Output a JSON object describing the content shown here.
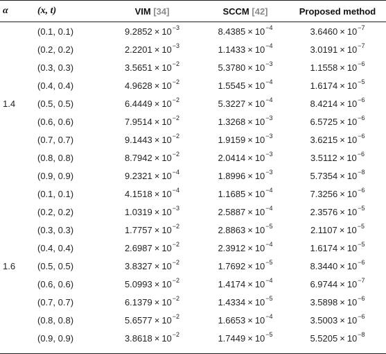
{
  "header": {
    "alpha": "α",
    "xt": "(x, t)",
    "vim_label": "VIM",
    "vim_ref": "[34]",
    "sccm_label": "SCCM",
    "sccm_ref": "[42]",
    "proposed_label": "Proposed method"
  },
  "times_symbol": "×",
  "rows": [
    {
      "alpha": "",
      "xt": "(0.1, 0.1)",
      "vim": {
        "m": "9.2852",
        "e": "−3"
      },
      "sccm": {
        "m": "8.4385",
        "e": "−4"
      },
      "prop": {
        "m": "3.6460",
        "e": "−7"
      }
    },
    {
      "alpha": "",
      "xt": "(0.2, 0.2)",
      "vim": {
        "m": "2.2201",
        "e": "−3"
      },
      "sccm": {
        "m": "1.1433",
        "e": "−4"
      },
      "prop": {
        "m": "3.0191",
        "e": "−7"
      }
    },
    {
      "alpha": "",
      "xt": "(0.3, 0.3)",
      "vim": {
        "m": "3.5651",
        "e": "−2"
      },
      "sccm": {
        "m": "5.3780",
        "e": "−3"
      },
      "prop": {
        "m": "1.1558",
        "e": "−6"
      }
    },
    {
      "alpha": "",
      "xt": "(0.4, 0.4)",
      "vim": {
        "m": "4.9628",
        "e": "−2"
      },
      "sccm": {
        "m": "1.5545",
        "e": "−4"
      },
      "prop": {
        "m": "1.6174",
        "e": "−5"
      }
    },
    {
      "alpha": "1.4",
      "xt": "(0.5, 0.5)",
      "vim": {
        "m": "6.4449",
        "e": "−2"
      },
      "sccm": {
        "m": "5.3227",
        "e": "−4"
      },
      "prop": {
        "m": "8.4214",
        "e": "−6"
      }
    },
    {
      "alpha": "",
      "xt": "(0.6, 0.6)",
      "vim": {
        "m": "7.9514",
        "e": "−2"
      },
      "sccm": {
        "m": "1.3268",
        "e": "−3"
      },
      "prop": {
        "m": "6.5725",
        "e": "−6"
      }
    },
    {
      "alpha": "",
      "xt": "(0.7, 0.7)",
      "vim": {
        "m": "9.1443",
        "e": "−2"
      },
      "sccm": {
        "m": "1.9159",
        "e": "−3"
      },
      "prop": {
        "m": "3.6215",
        "e": "−6"
      }
    },
    {
      "alpha": "",
      "xt": "(0.8, 0.8)",
      "vim": {
        "m": "8.7942",
        "e": "−2"
      },
      "sccm": {
        "m": "2.0414",
        "e": "−3"
      },
      "prop": {
        "m": "3.5112",
        "e": "−6"
      }
    },
    {
      "alpha": "",
      "xt": "(0.9, 0.9)",
      "vim": {
        "m": "9.2321",
        "e": "−4"
      },
      "sccm": {
        "m": "1.8996",
        "e": "−3"
      },
      "prop": {
        "m": "5.7354",
        "e": "−8"
      }
    },
    {
      "alpha": "",
      "xt": "(0.1, 0.1)",
      "vim": {
        "m": "4.1518",
        "e": "−4"
      },
      "sccm": {
        "m": "1.1685",
        "e": "−4"
      },
      "prop": {
        "m": "7.3256",
        "e": "−6"
      }
    },
    {
      "alpha": "",
      "xt": "(0.2, 0.2)",
      "vim": {
        "m": "1.0319",
        "e": "−3"
      },
      "sccm": {
        "m": "2.5887",
        "e": "−4"
      },
      "prop": {
        "m": "2.3576",
        "e": "−5"
      }
    },
    {
      "alpha": "",
      "xt": "(0.3, 0.3)",
      "vim": {
        "m": "1.7757",
        "e": "−2"
      },
      "sccm": {
        "m": "2.8863",
        "e": "−5"
      },
      "prop": {
        "m": "2.1107",
        "e": "−5"
      }
    },
    {
      "alpha": "",
      "xt": "(0.4, 0.4)",
      "vim": {
        "m": "2.6987",
        "e": "−2"
      },
      "sccm": {
        "m": "2.3912",
        "e": "−4"
      },
      "prop": {
        "m": "1.6174",
        "e": "−5"
      }
    },
    {
      "alpha": "1.6",
      "xt": "(0.5, 0.5)",
      "vim": {
        "m": "3.8327",
        "e": "−2"
      },
      "sccm": {
        "m": "1.7692",
        "e": "−5"
      },
      "prop": {
        "m": "8.3440",
        "e": "−6"
      }
    },
    {
      "alpha": "",
      "xt": "(0.6, 0.6)",
      "vim": {
        "m": "5.0993",
        "e": "−2"
      },
      "sccm": {
        "m": "1.4174",
        "e": "−4"
      },
      "prop": {
        "m": "6.9744",
        "e": "−7"
      }
    },
    {
      "alpha": "",
      "xt": "(0.7, 0.7)",
      "vim": {
        "m": "6.1379",
        "e": "−2"
      },
      "sccm": {
        "m": "1.4334",
        "e": "−5"
      },
      "prop": {
        "m": "3.5898",
        "e": "−6"
      }
    },
    {
      "alpha": "",
      "xt": "(0.8, 0.8)",
      "vim": {
        "m": "5.6577",
        "e": "−2"
      },
      "sccm": {
        "m": "1.6653",
        "e": "−4"
      },
      "prop": {
        "m": "3.5003",
        "e": "−6"
      }
    },
    {
      "alpha": "",
      "xt": "(0.9, 0.9)",
      "vim": {
        "m": "3.8618",
        "e": "−2"
      },
      "sccm": {
        "m": "1.7449",
        "e": "−5"
      },
      "prop": {
        "m": "5.5205",
        "e": "−8"
      }
    }
  ]
}
